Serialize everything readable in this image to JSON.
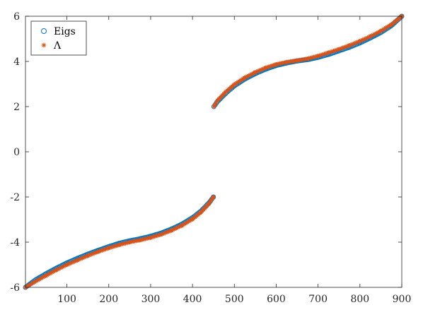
{
  "chart_data": {
    "type": "scatter",
    "title": "",
    "xlabel": "",
    "ylabel": "",
    "xlim": [
      1,
      900
    ],
    "ylim": [
      -6,
      6
    ],
    "xticks": [
      100,
      200,
      300,
      400,
      500,
      600,
      700,
      800,
      900
    ],
    "yticks": [
      -6,
      -4,
      -2,
      0,
      2,
      4,
      6
    ],
    "xtick_labels": [
      "100",
      "200",
      "300",
      "400",
      "500",
      "600",
      "700",
      "800",
      "900"
    ],
    "ytick_labels": [
      "-6",
      "-4",
      "-2",
      "0",
      "2",
      "4",
      "6"
    ],
    "grid": false,
    "legend_position": "top-left",
    "series": [
      {
        "name": "Eigs",
        "marker": "circle",
        "color": "#0072BD",
        "points": [
          [
            1,
            -6.0
          ],
          [
            25,
            -5.67
          ],
          [
            50,
            -5.4
          ],
          [
            75,
            -5.15
          ],
          [
            100,
            -4.92
          ],
          [
            125,
            -4.72
          ],
          [
            150,
            -4.53
          ],
          [
            175,
            -4.36
          ],
          [
            200,
            -4.2
          ],
          [
            225,
            -4.05
          ],
          [
            250,
            -3.94
          ],
          [
            275,
            -3.85
          ],
          [
            300,
            -3.74
          ],
          [
            325,
            -3.6
          ],
          [
            350,
            -3.42
          ],
          [
            375,
            -3.2
          ],
          [
            400,
            -2.92
          ],
          [
            420,
            -2.63
          ],
          [
            440,
            -2.25
          ],
          [
            450,
            -2.0
          ],
          [
            451,
            2.0
          ],
          [
            460,
            2.23
          ],
          [
            480,
            2.6
          ],
          [
            500,
            2.92
          ],
          [
            525,
            3.22
          ],
          [
            550,
            3.46
          ],
          [
            575,
            3.66
          ],
          [
            600,
            3.82
          ],
          [
            625,
            3.93
          ],
          [
            650,
            4.02
          ],
          [
            675,
            4.08
          ],
          [
            700,
            4.18
          ],
          [
            725,
            4.31
          ],
          [
            750,
            4.47
          ],
          [
            775,
            4.63
          ],
          [
            800,
            4.82
          ],
          [
            825,
            5.04
          ],
          [
            850,
            5.28
          ],
          [
            875,
            5.58
          ],
          [
            900,
            6.0
          ]
        ]
      },
      {
        "name": "Λ",
        "marker": "asterisk",
        "color": "#D95319",
        "points": [
          [
            1,
            -6.0
          ],
          [
            25,
            -5.74
          ],
          [
            50,
            -5.48
          ],
          [
            75,
            -5.23
          ],
          [
            100,
            -5.0
          ],
          [
            125,
            -4.8
          ],
          [
            150,
            -4.6
          ],
          [
            175,
            -4.42
          ],
          [
            200,
            -4.26
          ],
          [
            225,
            -4.12
          ],
          [
            250,
            -4.0
          ],
          [
            275,
            -3.91
          ],
          [
            300,
            -3.8
          ],
          [
            325,
            -3.66
          ],
          [
            350,
            -3.48
          ],
          [
            375,
            -3.26
          ],
          [
            400,
            -2.98
          ],
          [
            420,
            -2.68
          ],
          [
            440,
            -2.28
          ],
          [
            450,
            -2.0
          ],
          [
            451,
            2.0
          ],
          [
            460,
            2.28
          ],
          [
            480,
            2.66
          ],
          [
            500,
            2.98
          ],
          [
            525,
            3.28
          ],
          [
            550,
            3.52
          ],
          [
            575,
            3.72
          ],
          [
            600,
            3.87
          ],
          [
            625,
            3.97
          ],
          [
            650,
            4.04
          ],
          [
            675,
            4.12
          ],
          [
            700,
            4.24
          ],
          [
            725,
            4.39
          ],
          [
            750,
            4.54
          ],
          [
            775,
            4.71
          ],
          [
            800,
            4.9
          ],
          [
            825,
            5.11
          ],
          [
            850,
            5.35
          ],
          [
            875,
            5.63
          ],
          [
            900,
            6.0
          ]
        ]
      }
    ]
  }
}
